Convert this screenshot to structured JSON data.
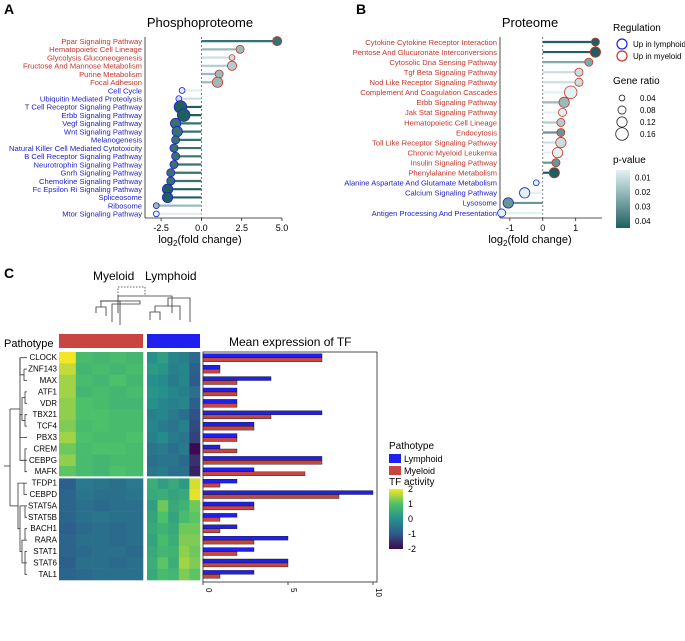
{
  "colors": {
    "lymphoid_text": "#1d1dcf",
    "myeloid_text": "#c8352b",
    "lymphoid_bar": "#1f1ff0",
    "myeloid_bar": "#c8463f",
    "pvalue_low": "#1f5f5f",
    "pvalue_high": "#e2f2f2",
    "heat_low": "#3d0a50",
    "heat_mid": "#25908c",
    "heat_high": "#f5e624"
  },
  "panelA": {
    "label": "A",
    "title": "Phosphoproteome",
    "xlabel_main": "log",
    "xlabel_sub": "2",
    "xlabel_rest": "(fold change)",
    "xlim": [
      -3.5,
      5.0
    ],
    "ticks": [
      "-2.5",
      "0.0",
      "2.5",
      "5.0"
    ],
    "tick_values": [
      -2.5,
      0,
      2.5,
      5.0
    ],
    "pathways": [
      {
        "name": "Ppar Signaling Pathway",
        "fc": 4.7,
        "ratio": 0.1,
        "p": 0.01,
        "group": "myeloid"
      },
      {
        "name": "Hematopoietic Cell Lineage",
        "fc": 2.4,
        "ratio": 0.08,
        "p": 0.03,
        "group": "myeloid"
      },
      {
        "name": "Glycolysis Gluconeogenesis",
        "fc": 1.9,
        "ratio": 0.04,
        "p": 0.04,
        "group": "myeloid"
      },
      {
        "name": "Fructose And Mannose Metabolism",
        "fc": 1.9,
        "ratio": 0.1,
        "p": 0.035,
        "group": "myeloid"
      },
      {
        "name": "Purine Metabolism",
        "fc": 1.1,
        "ratio": 0.08,
        "p": 0.03,
        "group": "myeloid"
      },
      {
        "name": "Focal Adhesion",
        "fc": 1.0,
        "ratio": 0.12,
        "p": 0.03,
        "group": "myeloid"
      },
      {
        "name": "Cell Cycle",
        "fc": -1.2,
        "ratio": 0.04,
        "p": 0.045,
        "group": "lymphoid"
      },
      {
        "name": "Ubiquitin Mediated Proteolysis",
        "fc": -1.4,
        "ratio": 0.04,
        "p": 0.04,
        "group": "lymphoid"
      },
      {
        "name": "T Cell Receptor Signaling Pathway",
        "fc": -1.3,
        "ratio": 0.16,
        "p": 0.005,
        "group": "lymphoid"
      },
      {
        "name": "Erbb Signaling Pathway",
        "fc": -1.1,
        "ratio": 0.16,
        "p": 0.005,
        "group": "lymphoid"
      },
      {
        "name": "Vegf Signaling Pathway",
        "fc": -1.6,
        "ratio": 0.12,
        "p": 0.01,
        "group": "lymphoid"
      },
      {
        "name": "Wnt Signaling Pathway",
        "fc": -1.5,
        "ratio": 0.12,
        "p": 0.01,
        "group": "lymphoid"
      },
      {
        "name": "Melanogenesis",
        "fc": -1.6,
        "ratio": 0.08,
        "p": 0.01,
        "group": "lymphoid"
      },
      {
        "name": "Natural Killer Cell Mediated Cytotoxicity",
        "fc": -1.7,
        "ratio": 0.08,
        "p": 0.01,
        "group": "lymphoid"
      },
      {
        "name": "B Cell Receptor Signaling Pathway",
        "fc": -1.6,
        "ratio": 0.08,
        "p": 0.01,
        "group": "lymphoid"
      },
      {
        "name": "Neurotrophin Signaling Pathway",
        "fc": -1.7,
        "ratio": 0.08,
        "p": 0.01,
        "group": "lymphoid"
      },
      {
        "name": "Gnrh Signaling Pathway",
        "fc": -1.9,
        "ratio": 0.08,
        "p": 0.01,
        "group": "lymphoid"
      },
      {
        "name": "Chemokine Signaling Pathway",
        "fc": -1.9,
        "ratio": 0.08,
        "p": 0.01,
        "group": "lymphoid"
      },
      {
        "name": "Fc Epsilon Ri Signaling Pathway",
        "fc": -2.1,
        "ratio": 0.12,
        "p": 0.005,
        "group": "lymphoid"
      },
      {
        "name": "Spliceosome",
        "fc": -2.1,
        "ratio": 0.12,
        "p": 0.005,
        "group": "lymphoid"
      },
      {
        "name": "Ribosome",
        "fc": -2.8,
        "ratio": 0.04,
        "p": 0.03,
        "group": "lymphoid"
      },
      {
        "name": "Mtor Signaling Pathway",
        "fc": -2.8,
        "ratio": 0.04,
        "p": 0.045,
        "group": "lymphoid"
      }
    ]
  },
  "panelB": {
    "label": "B",
    "title": "Proteome",
    "xlabel_main": "log",
    "xlabel_sub": "2",
    "xlabel_rest": "(fold change)",
    "xlim": [
      -1.3,
      1.8
    ],
    "ticks": [
      "-1",
      "0",
      "1"
    ],
    "tick_values": [
      -1,
      0,
      1
    ],
    "pathways": [
      {
        "name": "Cytokine Cytokine Receptor Interaction",
        "fc": 1.6,
        "ratio": 0.08,
        "p": 0.005,
        "group": "myeloid"
      },
      {
        "name": "Pentose And Glucuronate Interconversions",
        "fc": 1.6,
        "ratio": 0.12,
        "p": 0.005,
        "group": "myeloid"
      },
      {
        "name": "Cytosolic Dna Sensing Pathway",
        "fc": 1.4,
        "ratio": 0.08,
        "p": 0.025,
        "group": "myeloid"
      },
      {
        "name": "Tgf Beta Signaling Pathway",
        "fc": 1.1,
        "ratio": 0.08,
        "p": 0.04,
        "group": "myeloid"
      },
      {
        "name": "Nod Like Receptor Signaling Pathway",
        "fc": 1.1,
        "ratio": 0.08,
        "p": 0.04,
        "group": "myeloid"
      },
      {
        "name": "Complement And Coagulation Cascades",
        "fc": 0.85,
        "ratio": 0.16,
        "p": 0.045,
        "group": "myeloid"
      },
      {
        "name": "Erbb Signaling Pathway",
        "fc": 0.65,
        "ratio": 0.12,
        "p": 0.03,
        "group": "myeloid"
      },
      {
        "name": "Jak Stat Signaling Pathway",
        "fc": 0.6,
        "ratio": 0.08,
        "p": 0.045,
        "group": "myeloid"
      },
      {
        "name": "Hematopoietic Cell Lineage",
        "fc": 0.55,
        "ratio": 0.08,
        "p": 0.035,
        "group": "myeloid"
      },
      {
        "name": "Endocytosis",
        "fc": 0.55,
        "ratio": 0.08,
        "p": 0.02,
        "group": "myeloid"
      },
      {
        "name": "Toll Like Receptor Signaling Pathway",
        "fc": 0.55,
        "ratio": 0.12,
        "p": 0.04,
        "group": "myeloid"
      },
      {
        "name": "Chronic Myeloid Leukemia",
        "fc": 0.45,
        "ratio": 0.12,
        "p": 0.045,
        "group": "myeloid"
      },
      {
        "name": "Insulin Signaling Pathway",
        "fc": 0.4,
        "ratio": 0.08,
        "p": 0.02,
        "group": "myeloid"
      },
      {
        "name": "Phenylalanine Metabolism",
        "fc": 0.35,
        "ratio": 0.12,
        "p": 0.005,
        "group": "myeloid"
      },
      {
        "name": "Alanine Aspartate And Glutamate Metabolism",
        "fc": -0.2,
        "ratio": 0.04,
        "p": 0.045,
        "group": "lymphoid"
      },
      {
        "name": "Calcium Signaling Pathway",
        "fc": -0.55,
        "ratio": 0.12,
        "p": 0.045,
        "group": "lymphoid"
      },
      {
        "name": "Lysosome",
        "fc": -1.05,
        "ratio": 0.12,
        "p": 0.02,
        "group": "lymphoid"
      },
      {
        "name": "Antigen Processing And Presentation",
        "fc": -1.25,
        "ratio": 0.08,
        "p": 0.045,
        "group": "lymphoid"
      }
    ]
  },
  "legendAB": {
    "regulation_title": "Regulation",
    "regulation_items": [
      "Up in lymphoid",
      "Up in myeloid"
    ],
    "ratio_title": "Gene ratio",
    "ratio_items": [
      "0.04",
      "0.08",
      "0.12",
      "0.16"
    ],
    "ratio_values": [
      0.04,
      0.08,
      0.12,
      0.16
    ],
    "p_title": "p-value",
    "p_ticks": [
      "0.04",
      "0.03",
      "0.02",
      "0.01"
    ],
    "p_values": [
      0.04,
      0.03,
      0.02,
      0.01
    ]
  },
  "panelC": {
    "label": "C",
    "col_group_left": "Myeloid",
    "col_group_right": "Lymphoid",
    "pathotype_label": "Pathotype",
    "bar_title": "Mean expression of TF",
    "bar_ticks": [
      "0",
      "5",
      "10"
    ],
    "bar_tick_values": [
      0,
      5,
      10
    ],
    "tfs": [
      "CLOCK",
      "ZNF143",
      "MAX",
      "ATF1",
      "VDR",
      "TBX21",
      "TCF4",
      "PBX3",
      "CREM",
      "CEBPG",
      "MAFK",
      "TFDP1",
      "CEBPD",
      "STAT5A",
      "STAT5B",
      "BACH1",
      "RARA",
      "STAT1",
      "STAT6",
      "TAL1"
    ],
    "myeloid_heat": [
      [
        2.0,
        0.9,
        0.8,
        0.9,
        0.8
      ],
      [
        1.7,
        0.8,
        0.9,
        0.8,
        0.9
      ],
      [
        1.5,
        0.9,
        0.8,
        1.0,
        0.8
      ],
      [
        1.5,
        0.8,
        0.9,
        0.8,
        0.9
      ],
      [
        1.4,
        1.0,
        0.9,
        0.8,
        0.8
      ],
      [
        1.4,
        1.0,
        1.0,
        0.9,
        0.9
      ],
      [
        1.3,
        0.9,
        1.0,
        0.9,
        0.9
      ],
      [
        1.5,
        1.0,
        0.9,
        0.9,
        1.0
      ],
      [
        1.2,
        0.9,
        1.0,
        1.0,
        0.9
      ],
      [
        1.4,
        0.9,
        0.8,
        0.9,
        0.9
      ],
      [
        1.1,
        0.9,
        0.8,
        1.0,
        0.9
      ],
      [
        -0.9,
        -0.4,
        -0.5,
        -0.6,
        -0.4
      ],
      [
        -0.8,
        -0.5,
        -0.6,
        -0.6,
        -0.5
      ],
      [
        -0.8,
        -0.6,
        -0.7,
        -0.6,
        -0.6
      ],
      [
        -0.8,
        -0.6,
        -0.5,
        -0.6,
        -0.6
      ],
      [
        -0.9,
        -0.7,
        -0.6,
        -0.7,
        -0.6
      ],
      [
        -0.8,
        -0.6,
        -0.6,
        -0.7,
        -0.6
      ],
      [
        -0.8,
        -0.7,
        -0.6,
        -0.6,
        -0.7
      ],
      [
        -0.9,
        -0.6,
        -0.6,
        -0.7,
        -0.6
      ],
      [
        -0.8,
        -0.7,
        -0.6,
        -0.6,
        -0.6
      ]
    ],
    "lymphoid_heat": [
      [
        0.0,
        0.3,
        -0.2,
        -0.3,
        -0.7
      ],
      [
        0.2,
        0.1,
        -0.3,
        -0.2,
        -0.9
      ],
      [
        0.0,
        -0.1,
        -0.4,
        -0.2,
        -1.0
      ],
      [
        0.1,
        0.0,
        -0.2,
        -0.3,
        -0.6
      ],
      [
        0.0,
        -0.2,
        -0.3,
        -0.2,
        -0.9
      ],
      [
        -0.3,
        -0.2,
        -0.4,
        -0.6,
        -1.1
      ],
      [
        -0.2,
        -0.4,
        -0.5,
        -0.3,
        -1.2
      ],
      [
        -0.3,
        -0.1,
        -0.4,
        -0.5,
        -1.3
      ],
      [
        -0.5,
        -0.4,
        -0.6,
        -0.4,
        -2.0
      ],
      [
        -0.6,
        -0.5,
        -0.5,
        -0.7,
        -1.5
      ],
      [
        -0.5,
        -0.4,
        -0.6,
        -0.6,
        -1.7
      ],
      [
        0.6,
        0.3,
        0.5,
        0.2,
        1.8
      ],
      [
        0.5,
        0.6,
        0.4,
        0.5,
        1.9
      ],
      [
        0.3,
        1.2,
        0.5,
        0.7,
        1.2
      ],
      [
        0.4,
        1.0,
        0.4,
        0.9,
        1.1
      ],
      [
        0.5,
        0.7,
        0.5,
        1.2,
        1.2
      ],
      [
        0.4,
        0.9,
        0.6,
        1.3,
        1.3
      ],
      [
        0.5,
        0.8,
        0.7,
        1.4,
        1.2
      ],
      [
        0.6,
        1.1,
        0.6,
        1.5,
        1.3
      ],
      [
        0.5,
        0.9,
        0.8,
        1.3,
        1.1
      ]
    ],
    "lymphoid_expr": [
      7.0,
      1.0,
      4.0,
      2.0,
      2.0,
      7.0,
      3.0,
      2.0,
      1.0,
      7.0,
      3.0,
      2.0,
      10.0,
      3.0,
      2.0,
      2.0,
      5.0,
      3.0,
      5.0,
      3.0
    ],
    "myeloid_expr": [
      7.0,
      1.0,
      2.0,
      2.0,
      2.0,
      4.0,
      3.0,
      2.0,
      2.0,
      7.0,
      6.0,
      1.0,
      8.0,
      3.0,
      1.0,
      1.0,
      3.0,
      2.0,
      5.0,
      1.0
    ],
    "legend_pathotype_title": "Pathotype",
    "legend_pathotype_items": [
      "Lymphoid",
      "Myeloid"
    ],
    "legend_activity_title": "TF activity",
    "legend_activity_ticks": [
      "2",
      "1",
      "0",
      "-1",
      "-2"
    ],
    "legend_activity_values": [
      2,
      1,
      0,
      -1,
      -2
    ]
  },
  "chart_data": [
    {
      "type": "scatter",
      "title": "Phosphoproteome",
      "xlabel": "log2(fold change)",
      "xlim": [
        -3.5,
        5.0
      ],
      "note": "lollipop; categories and values listed in panelA.pathways"
    },
    {
      "type": "scatter",
      "title": "Proteome",
      "xlabel": "log2(fold change)",
      "xlim": [
        -1.3,
        1.8
      ],
      "note": "lollipop; categories and values listed in panelB.pathways"
    },
    {
      "type": "heatmap",
      "title": "TF activity",
      "rows": "panelC.tfs",
      "column_groups": [
        "Myeloid",
        "Lymphoid"
      ],
      "range": [
        -2,
        2
      ]
    },
    {
      "type": "bar",
      "title": "Mean expression of TF",
      "categories": "panelC.tfs",
      "series": [
        {
          "name": "Lymphoid",
          "values_ref": "panelC.lymphoid_expr"
        },
        {
          "name": "Myeloid",
          "values_ref": "panelC.myeloid_expr"
        }
      ],
      "xlim": [
        0,
        10
      ]
    }
  ]
}
